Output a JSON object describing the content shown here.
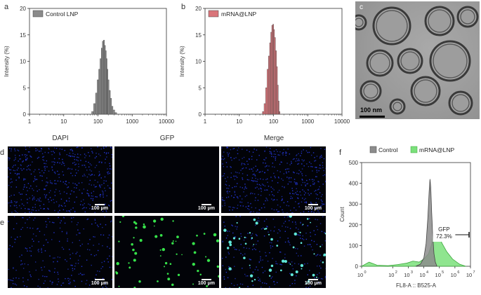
{
  "panels": {
    "a": "a",
    "b": "b",
    "c": "c",
    "d": "d",
    "e": "e",
    "f": "f"
  },
  "histograms": [
    {
      "id": "a",
      "legend": "Control LNP",
      "color": "#8a8a8a",
      "ylabel": "Intensity (%)",
      "xticks": [
        "1",
        "10",
        "100",
        "1000",
        "10000"
      ],
      "yticks": [
        "0",
        "5",
        "10",
        "15",
        "20"
      ]
    },
    {
      "id": "b",
      "legend": "mRNA@LNP",
      "color": "#d9757a",
      "ylabel": "Intensity (%)",
      "xticks": [
        "1",
        "10",
        "100",
        "1000",
        "10000"
      ],
      "yticks": [
        "0",
        "5",
        "10",
        "15",
        "20"
      ]
    }
  ],
  "tem": {
    "scale_label": "100 nm"
  },
  "microscopy": {
    "columns": [
      "DAPI",
      "GFP",
      "Merge"
    ],
    "scale_label": "100 μm"
  },
  "flow": {
    "legend": [
      "Control",
      "mRNA@LNP"
    ],
    "colors": {
      "control": "#8c8c8c",
      "mrna": "#7be07b"
    },
    "xlabel": "FL8-A :: B525-A",
    "ylabel": "Count",
    "gate_label": "GFP",
    "gate_value": "72.3%",
    "yticks": [
      "0",
      "100",
      "200",
      "300",
      "400",
      "500"
    ],
    "xticks": [
      "10",
      "10",
      "10",
      "10",
      "10",
      "10",
      "10"
    ],
    "xtick_exps": [
      "0",
      "2",
      "3",
      "4",
      "5",
      "6",
      "7"
    ]
  },
  "chart_data": [
    {
      "type": "bar",
      "panel": "a",
      "series": [
        {
          "name": "Control LNP",
          "x": [
            70,
            80,
            90,
            100,
            110,
            120,
            130,
            140,
            150,
            160,
            170,
            180,
            190,
            200,
            220,
            240,
            260,
            290,
            330
          ],
          "values": [
            0.5,
            2.0,
            4.0,
            6.5,
            8.5,
            10.5,
            12.5,
            13.8,
            14.0,
            13.0,
            12.0,
            10.5,
            8.5,
            6.5,
            4.5,
            3.0,
            1.5,
            0.8,
            0.3
          ]
        }
      ],
      "xscale": "log",
      "xlim": [
        1,
        10000
      ],
      "ylim": [
        0,
        20
      ],
      "ylabel": "Intensity (%)"
    },
    {
      "type": "bar",
      "panel": "b",
      "series": [
        {
          "name": "mRNA@LNP",
          "x": [
            50,
            56,
            62,
            68,
            74,
            80,
            86,
            92,
            98,
            104,
            110,
            118,
            126,
            134,
            142,
            150
          ],
          "values": [
            0.5,
            2.0,
            5.0,
            8.5,
            11.0,
            13.5,
            15.5,
            16.8,
            17.0,
            16.0,
            14.5,
            12.0,
            9.0,
            5.5,
            2.5,
            0.5
          ]
        }
      ],
      "xscale": "log",
      "xlim": [
        1,
        10000
      ],
      "ylim": [
        0,
        20
      ],
      "ylabel": "Intensity (%)"
    },
    {
      "type": "area",
      "panel": "f",
      "xscale": "log",
      "xlim": [
        1,
        10000000
      ],
      "ylim": [
        0,
        500
      ],
      "xlabel": "FL8-A :: B525-A",
      "ylabel": "Count",
      "series": [
        {
          "name": "Control",
          "x": [
            3000,
            6000,
            10000,
            14000,
            18000,
            22000,
            25000,
            28000,
            32000,
            38000,
            45000,
            55000,
            70000
          ],
          "values": [
            0,
            10,
            40,
            110,
            230,
            360,
            420,
            380,
            260,
            140,
            60,
            20,
            0
          ]
        },
        {
          "name": "mRNA@LNP",
          "x": [
            1,
            3,
            10,
            50,
            200,
            800,
            2000,
            5000,
            10000,
            20000,
            30000,
            40000,
            60000,
            90000,
            150000,
            300000,
            700000,
            2000000,
            5000000
          ],
          "values": [
            0,
            20,
            5,
            3,
            8,
            15,
            25,
            20,
            35,
            60,
            100,
            150,
            165,
            145,
            110,
            70,
            35,
            10,
            0
          ]
        }
      ]
    }
  ]
}
